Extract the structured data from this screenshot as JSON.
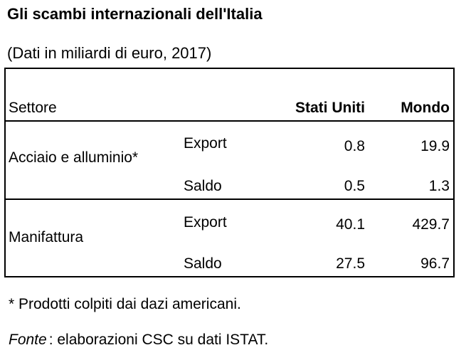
{
  "title": "Gli scambi internazionali dell'Italia",
  "subtitle": "(Dati in miliardi di euro, 2017)",
  "table": {
    "headers": [
      "Settore",
      "Stati Uniti",
      "Mondo"
    ],
    "groups": [
      {
        "sector": "Acciaio e alluminio*",
        "rows": [
          {
            "flow": "Export",
            "values": [
              0.8,
              19.9
            ]
          },
          {
            "flow": "Saldo",
            "values": [
              0.5,
              1.3
            ]
          }
        ]
      },
      {
        "sector": "Manifattura",
        "rows": [
          {
            "flow": "Export",
            "values": [
              40.1,
              429.7
            ]
          },
          {
            "flow": "Saldo",
            "values": [
              27.5,
              96.7
            ]
          }
        ]
      }
    ]
  },
  "notes": {
    "footnote": "* Prodotti colpiti dai dazi americani.",
    "source_label": "Fonte",
    "source_text": ": elaborazioni CSC su dati ISTAT."
  }
}
